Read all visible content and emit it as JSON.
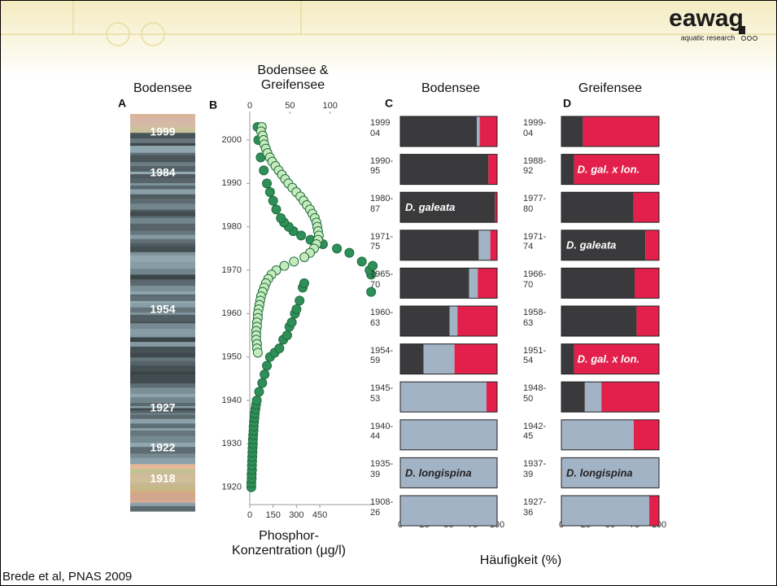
{
  "slide": {
    "logo": "eawag",
    "logo_sub": "aquatic research",
    "panel_a_title": "Bodensee",
    "core_labels": [
      "1999",
      "1984",
      "1954",
      "1927",
      "1922",
      "1918"
    ],
    "panel_letters": [
      "A",
      "B",
      "C",
      "D"
    ],
    "xlabel_shared": "Häufigkeit (%)",
    "footer": "Brede et al, PNAS 2009"
  },
  "chart_data": [
    {
      "type": "scatter",
      "title": "Bodensee &\nGreifensee",
      "xlabel": "Phosphor-\nKonzentration (µg/l)",
      "ylim": [
        1916,
        2006
      ],
      "yticks": [
        1920,
        1930,
        1940,
        1950,
        1960,
        1970,
        1980,
        1990,
        2000
      ],
      "xlim": [
        0,
        800
      ],
      "xticks": [
        0,
        150,
        300,
        450
      ],
      "x2lim": [
        0,
        155
      ],
      "x2ticks": [
        0,
        50,
        100
      ],
      "series": [
        {
          "color": "#2f8f58",
          "axis": "x",
          "years": [
            1920,
            1921,
            1922,
            1923,
            1924,
            1925,
            1926,
            1927,
            1928,
            1929,
            1930,
            1931,
            1932,
            1933,
            1934,
            1935,
            1936,
            1937,
            1938,
            1939,
            1940,
            1942,
            1944,
            1946,
            1948,
            1950,
            1951,
            1952,
            1954,
            1955,
            1957,
            1958,
            1960,
            1961,
            1963,
            1965,
            1966,
            1967,
            1969,
            1970,
            1971,
            1972,
            1974,
            1975,
            1976,
            1977,
            1978,
            1979,
            1980,
            1981,
            1982,
            1984,
            1986,
            1988,
            1990,
            1993,
            1996,
            2000,
            2003
          ],
          "values": [
            10,
            10,
            12,
            12,
            14,
            14,
            15,
            16,
            17,
            18,
            20,
            20,
            22,
            24,
            25,
            27,
            30,
            32,
            36,
            40,
            45,
            60,
            80,
            95,
            110,
            130,
            160,
            190,
            215,
            240,
            255,
            270,
            290,
            300,
            320,
            780,
            340,
            350,
            780,
            770,
            790,
            720,
            640,
            560,
            470,
            390,
            330,
            280,
            250,
            220,
            200,
            170,
            150,
            130,
            110,
            90,
            70,
            55,
            50
          ]
        },
        {
          "color": "#c5ebbd",
          "axis": "x2",
          "years": [
            2003,
            2002,
            2001,
            2000,
            1999,
            1998,
            1997,
            1996,
            1995,
            1994,
            1993,
            1992,
            1991,
            1990,
            1989,
            1988,
            1987,
            1986,
            1985,
            1984,
            1983,
            1982,
            1981,
            1980,
            1979,
            1978,
            1977,
            1976,
            1975,
            1974,
            1973,
            1972,
            1971,
            1970,
            1969,
            1968,
            1967,
            1966,
            1965,
            1964,
            1963,
            1962,
            1961,
            1960,
            1959,
            1958,
            1957,
            1956,
            1955,
            1954,
            1953,
            1952,
            1951
          ],
          "values": [
            15,
            14,
            16,
            17,
            18,
            20,
            22,
            25,
            28,
            32,
            36,
            40,
            44,
            48,
            53,
            58,
            63,
            67,
            71,
            75,
            78,
            81,
            83,
            84,
            85,
            86,
            85,
            83,
            80,
            75,
            68,
            55,
            43,
            33,
            27,
            23,
            20,
            18,
            16,
            14,
            13,
            12,
            11,
            10,
            10,
            9,
            9,
            8,
            8,
            8,
            9,
            9,
            10
          ]
        }
      ]
    },
    {
      "type": "bar",
      "title": "Bodensee",
      "categories": [
        "1999\n04",
        "1990-\n95",
        "1980-\n87",
        "1971-\n75",
        "1965-\n70",
        "1960-\n63",
        "1954-\n59",
        "1945-\n53",
        "1940-\n44",
        "1935-\n39",
        "1908-\n26"
      ],
      "series": [
        {
          "color": "#3a3a3c",
          "values": [
            79,
            91,
            98,
            81,
            71,
            51,
            24,
            0,
            0,
            0,
            0
          ]
        },
        {
          "color": "#a3b3c6",
          "values": [
            3,
            0,
            0,
            12,
            9,
            8,
            32,
            89,
            100,
            100,
            100
          ]
        },
        {
          "color": "#e2204b",
          "values": [
            18,
            9,
            2,
            7,
            20,
            41,
            44,
            11,
            0,
            0,
            0
          ]
        }
      ],
      "bar_labels": [
        null,
        null,
        "D. galeata",
        null,
        null,
        null,
        null,
        null,
        null,
        "D. longispina",
        null
      ],
      "xlim": [
        0,
        100
      ],
      "xticks": [
        0,
        25,
        50,
        75,
        100
      ]
    },
    {
      "type": "bar",
      "title": "Greifensee",
      "categories": [
        "1999-\n04",
        "1988-\n92",
        "1977-\n80",
        "1971-\n74",
        "1966-\n70",
        "1958-\n63",
        "1951-\n54",
        "1948-\n50",
        "1942-\n45",
        "1937-\n39",
        "1927-\n36"
      ],
      "series": [
        {
          "color": "#3a3a3c",
          "values": [
            22,
            13,
            74,
            86,
            75,
            77,
            13,
            24,
            0,
            0,
            0
          ]
        },
        {
          "color": "#a3b3c6",
          "values": [
            0,
            0,
            0,
            0,
            0,
            0,
            0,
            17,
            74,
            100,
            90
          ]
        },
        {
          "color": "#e2204b",
          "values": [
            78,
            87,
            26,
            14,
            25,
            23,
            87,
            59,
            26,
            0,
            10
          ]
        }
      ],
      "bar_labels": [
        null,
        "D. gal. x lon.",
        null,
        "D. galeata",
        null,
        null,
        "D. gal. x lon.",
        null,
        null,
        "D. longispina",
        null
      ],
      "xlim": [
        0,
        100
      ],
      "xticks": [
        0,
        25,
        50,
        75,
        100
      ]
    }
  ]
}
